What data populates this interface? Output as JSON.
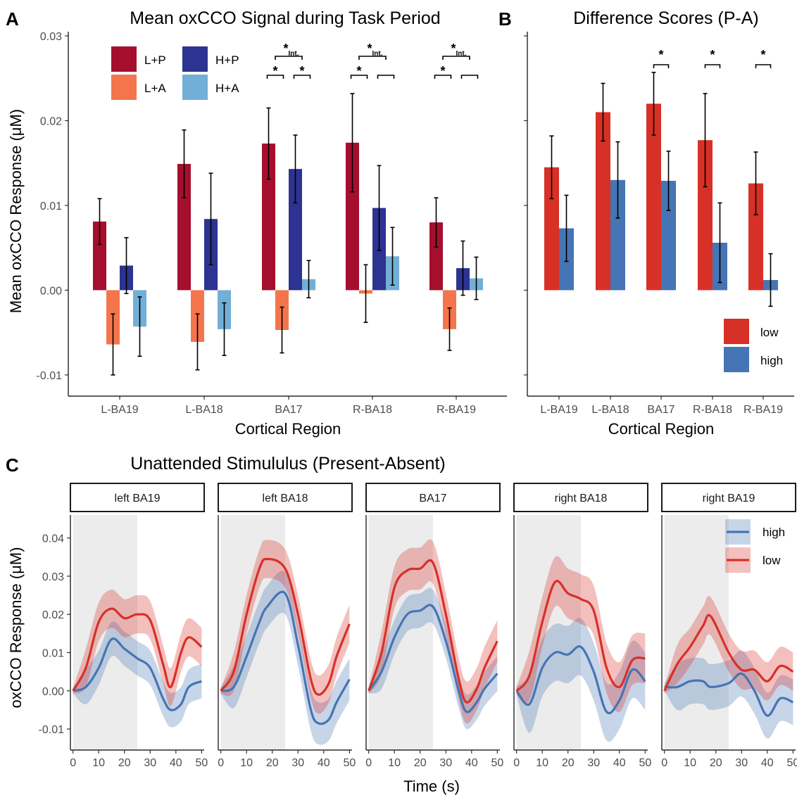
{
  "colors": {
    "LP": "#a50f2d",
    "LA": "#f4754c",
    "HP": "#2d3390",
    "HA": "#72afd6",
    "low": "#d73027",
    "high": "#4575b4",
    "shade": "#ececec"
  },
  "panelA": {
    "letter": "A",
    "title": "Mean oxCCO Signal during Task Period",
    "ylabel": "Mean oxCCO Response (μM)",
    "xlabel": "Cortical Region",
    "ylim": [
      -0.0125,
      0.0305
    ],
    "yticks": [
      -0.01,
      0.0,
      0.01,
      0.02,
      0.03
    ],
    "ytick_labels": [
      "-0.01",
      "0.00",
      "0.01",
      "0.02",
      "0.03"
    ],
    "legend": [
      {
        "key": "LP",
        "label": "L+P"
      },
      {
        "key": "LA",
        "label": "L+A"
      },
      {
        "key": "HP",
        "label": "H+P"
      },
      {
        "key": "HA",
        "label": "H+A"
      }
    ],
    "significance": {
      "star": "*",
      "int_label": "Int."
    }
  },
  "panelB": {
    "letter": "B",
    "title": "Difference Scores (P-A)",
    "xlabel": "Cortical Region",
    "legend": [
      {
        "key": "low",
        "label": "low"
      },
      {
        "key": "high",
        "label": "high"
      }
    ],
    "significance": {
      "star": "*"
    }
  },
  "panelC": {
    "letter": "C",
    "title": "Unattended Stimululus (Present-Absent)",
    "ylabel": "oxCCO Response (μM)",
    "xlabel": "Time (s)",
    "ylim": [
      -0.0155,
      0.046
    ],
    "yticks": [
      -0.01,
      0.0,
      0.01,
      0.02,
      0.03,
      0.04
    ],
    "ytick_labels": [
      "-0.01",
      "0.00",
      "0.01",
      "0.02",
      "0.03",
      "0.04"
    ],
    "xticks": [
      0,
      10,
      20,
      30,
      40,
      50
    ],
    "xtick_labels": [
      "0",
      "10",
      "20",
      "30",
      "40",
      "50"
    ],
    "shade_range": [
      0,
      25
    ],
    "legend": [
      {
        "key": "high",
        "label": "high"
      },
      {
        "key": "low",
        "label": "low"
      }
    ],
    "facets": [
      "left BA19",
      "left BA18",
      "BA17",
      "right BA18",
      "right BA19"
    ]
  },
  "chart_data": [
    {
      "type": "bar",
      "panel": "A",
      "title": "Mean oxCCO Signal during Task Period",
      "xlabel": "Cortical Region",
      "ylabel": "Mean oxCCO Response (μM)",
      "categories": [
        "L-BA19",
        "L-BA18",
        "BA17",
        "R-BA18",
        "R-BA19"
      ],
      "series": [
        {
          "name": "L+P",
          "values": [
            0.0081,
            0.0149,
            0.0173,
            0.0174,
            0.008
          ],
          "errors": [
            0.0027,
            0.004,
            0.0042,
            0.0058,
            0.0029
          ]
        },
        {
          "name": "L+A",
          "values": [
            -0.0064,
            -0.0061,
            -0.0047,
            -0.0004,
            -0.0046
          ],
          "errors": [
            0.0036,
            0.0033,
            0.0027,
            0.0034,
            0.0025
          ]
        },
        {
          "name": "H+P",
          "values": [
            0.0029,
            0.0084,
            0.0143,
            0.0097,
            0.0026
          ],
          "errors": [
            0.0033,
            0.0054,
            0.004,
            0.005,
            0.0032
          ]
        },
        {
          "name": "H+A",
          "values": [
            -0.0043,
            -0.0046,
            0.0013,
            0.004,
            0.0014
          ],
          "errors": [
            0.0035,
            0.0031,
            0.0022,
            0.0034,
            0.0025
          ]
        }
      ],
      "ylim": [
        -0.0125,
        0.0305
      ],
      "grid": false,
      "legend_position": "top-left",
      "significance": [
        {
          "region": "BA17",
          "pairs": [
            "L+P vs L+A",
            "H+P vs H+A"
          ],
          "interaction": true
        },
        {
          "region": "R-BA18",
          "pairs": [
            "L+P vs L+A"
          ],
          "interaction": true
        },
        {
          "region": "R-BA19",
          "pairs": [
            "L+P vs L+A"
          ],
          "interaction": true
        }
      ]
    },
    {
      "type": "bar",
      "panel": "B",
      "title": "Difference Scores (P-A)",
      "xlabel": "Cortical Region",
      "categories": [
        "L-BA19",
        "L-BA18",
        "BA17",
        "R-BA18",
        "R-BA19"
      ],
      "series": [
        {
          "name": "low",
          "values": [
            0.0145,
            0.021,
            0.022,
            0.0177,
            0.0126
          ],
          "errors": [
            0.0037,
            0.0034,
            0.0037,
            0.0055,
            0.0037
          ]
        },
        {
          "name": "high",
          "values": [
            0.0073,
            0.013,
            0.0129,
            0.0056,
            0.0012
          ],
          "errors": [
            0.0039,
            0.0045,
            0.0035,
            0.0047,
            0.0031
          ]
        }
      ],
      "ylim": [
        -0.0125,
        0.0305
      ],
      "legend_position": "bottom-right",
      "significance": [
        {
          "region": "BA17",
          "pairs": [
            "low vs high"
          ]
        },
        {
          "region": "R-BA18",
          "pairs": [
            "low vs high"
          ]
        },
        {
          "region": "R-BA19",
          "pairs": [
            "low vs high"
          ]
        }
      ]
    },
    {
      "type": "line",
      "panel": "C",
      "title": "Unattended Stimululus (Present-Absent)",
      "xlabel": "Time (s)",
      "ylabel": "oxCCO Response (μM)",
      "xlim": [
        -1,
        51
      ],
      "ylim": [
        -0.0155,
        0.046
      ],
      "legend_position": "top-right",
      "facets": [
        {
          "name": "left BA19",
          "x": [
            0,
            5,
            10,
            15,
            20,
            25,
            30,
            35,
            38,
            42,
            45,
            50
          ],
          "series": [
            {
              "name": "low",
              "values": [
                0.0,
                0.006,
                0.018,
                0.0215,
                0.019,
                0.02,
                0.0185,
                0.007,
                0.001,
                0.01,
                0.014,
                0.0115
              ],
              "band": 0.005
            },
            {
              "name": "high",
              "values": [
                0.0,
                0.001,
                0.006,
                0.0135,
                0.011,
                0.0085,
                0.006,
                -0.002,
                -0.005,
                -0.0035,
                0.001,
                0.0025
              ],
              "band": 0.0045
            }
          ]
        },
        {
          "name": "left BA18",
          "x": [
            0,
            5,
            10,
            15,
            18,
            25,
            30,
            35,
            38,
            42,
            45,
            50
          ],
          "series": [
            {
              "name": "low",
              "values": [
                0.0,
                0.005,
                0.02,
                0.032,
                0.0345,
                0.032,
                0.02,
                0.003,
                -0.001,
                0.002,
                0.009,
                0.0175
              ],
              "band": 0.005
            },
            {
              "name": "high",
              "values": [
                0.0,
                0.001,
                0.009,
                0.018,
                0.022,
                0.0255,
                0.012,
                -0.005,
                -0.0085,
                -0.0075,
                -0.003,
                0.003
              ],
              "band": 0.0055
            }
          ]
        },
        {
          "name": "BA17",
          "x": [
            0,
            5,
            10,
            15,
            20,
            25,
            30,
            35,
            38,
            42,
            45,
            50
          ],
          "series": [
            {
              "name": "low",
              "values": [
                0.0,
                0.01,
                0.027,
                0.0315,
                0.032,
                0.0335,
                0.02,
                0.003,
                -0.003,
                0.0005,
                0.006,
                0.013
              ],
              "band": 0.0055
            },
            {
              "name": "high",
              "values": [
                0.0,
                0.005,
                0.014,
                0.02,
                0.021,
                0.022,
                0.013,
                0.0,
                -0.0055,
                -0.003,
                0.0005,
                0.0045
              ],
              "band": 0.0045
            }
          ]
        },
        {
          "name": "right BA18",
          "x": [
            0,
            5,
            10,
            15,
            20,
            25,
            30,
            35,
            40,
            45,
            50
          ],
          "series": [
            {
              "name": "low",
              "values": [
                0.0,
                0.004,
                0.018,
                0.0285,
                0.0255,
                0.024,
                0.021,
                0.006,
                0.001,
                0.008,
                0.0085
              ],
              "band": 0.0065
            },
            {
              "name": "high",
              "values": [
                0.0,
                -0.0035,
                0.006,
                0.01,
                0.0095,
                0.0115,
                0.005,
                -0.0055,
                -0.0025,
                0.0055,
                0.0025
              ],
              "band": 0.0075
            }
          ]
        },
        {
          "name": "right BA19",
          "x": [
            0,
            5,
            10,
            15,
            18,
            25,
            30,
            35,
            40,
            45,
            50
          ],
          "series": [
            {
              "name": "low",
              "values": [
                0.0,
                0.007,
                0.0115,
                0.017,
                0.0195,
                0.01,
                0.0055,
                0.0055,
                0.0025,
                0.0065,
                0.005
              ],
              "band": 0.005
            },
            {
              "name": "high",
              "values": [
                0.001,
                0.001,
                0.0025,
                0.0025,
                0.001,
                0.002,
                0.0045,
                0.0,
                -0.0065,
                -0.002,
                -0.003
              ],
              "band": 0.006
            }
          ]
        }
      ]
    }
  ]
}
